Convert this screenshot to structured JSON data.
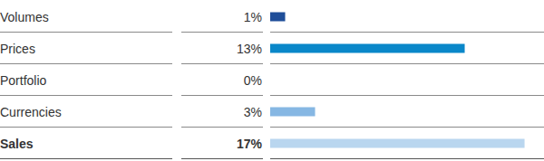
{
  "chart_data": {
    "type": "bar",
    "orientation": "horizontal",
    "categories": [
      "Volumes",
      "Prices",
      "Portfolio",
      "Currencies",
      "Sales"
    ],
    "values": [
      1,
      13,
      0,
      3,
      17
    ],
    "value_labels": [
      "1%",
      "13%",
      "0%",
      "3%",
      "17%"
    ],
    "colors": [
      "#1f4e99",
      "#0a87c9",
      "#0a87c9",
      "#86b7e3",
      "#b9d6ef"
    ],
    "xlim": [
      0,
      18.3
    ],
    "data_labels": true,
    "tick_labels": false,
    "grid": false
  }
}
